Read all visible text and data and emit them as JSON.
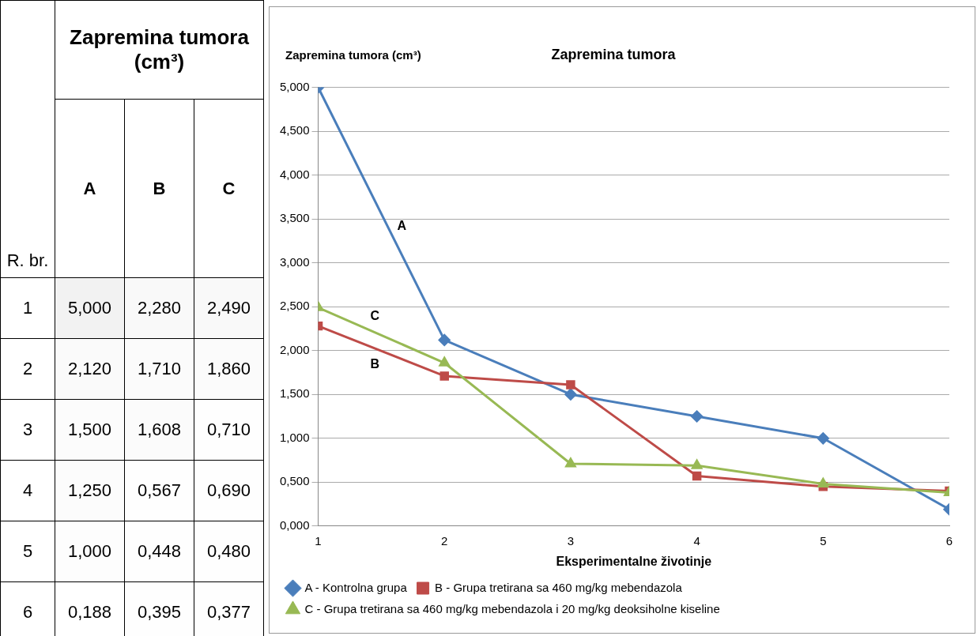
{
  "chart_data": [
    {
      "type": "heatmap",
      "title": "Zapremina tumora (cm³)",
      "ylabel": "R. br.",
      "categories": [
        "A",
        "B",
        "C"
      ],
      "y_categories": [
        "1",
        "2",
        "3",
        "4",
        "5",
        "6"
      ],
      "cells": [
        [
          5.0,
          2.28,
          2.49
        ],
        [
          2.12,
          1.71,
          1.86
        ],
        [
          1.5,
          1.608,
          0.71
        ],
        [
          1.25,
          0.567,
          0.69
        ],
        [
          1.0,
          0.448,
          0.48
        ],
        [
          0.188,
          0.395,
          0.377
        ]
      ],
      "cell_labels": [
        [
          "5,000",
          "2,280",
          "2,490"
        ],
        [
          "2,120",
          "1,710",
          "1,860"
        ],
        [
          "1,500",
          "1,608",
          "0,710"
        ],
        [
          "1,250",
          "0,567",
          "0,690"
        ],
        [
          "1,000",
          "0,448",
          "0,480"
        ],
        [
          "0,188",
          "0,395",
          "0,377"
        ]
      ]
    },
    {
      "type": "line",
      "title": "Zapremina tumora",
      "xlabel": "Eksperimentalne životinje",
      "ylabel": "Zapremina tumora (cm³)",
      "x": [
        1,
        2,
        3,
        4,
        5,
        6
      ],
      "xlim": [
        1,
        6
      ],
      "xticks": [
        1,
        2,
        3,
        4,
        5,
        6
      ],
      "ylim": [
        0,
        5
      ],
      "yticks": [
        {
          "value": 0,
          "label": "0,000"
        },
        {
          "value": 0.5,
          "label": "0,500"
        },
        {
          "value": 1,
          "label": "1,000"
        },
        {
          "value": 1.5,
          "label": "1,500"
        },
        {
          "value": 2,
          "label": "2,000"
        },
        {
          "value": 2.5,
          "label": "2,500"
        },
        {
          "value": 3,
          "label": "3,000"
        },
        {
          "value": 3.5,
          "label": "3,500"
        },
        {
          "value": 4,
          "label": "4,000"
        },
        {
          "value": 4.5,
          "label": "4,500"
        },
        {
          "value": 5,
          "label": "5,000"
        }
      ],
      "grid": "y",
      "legend": "bottom",
      "series": [
        {
          "name": "A - Kontrolna grupa",
          "color": "#4a7ebb",
          "marker": "diamond",
          "values": [
            5.0,
            2.12,
            1.5,
            1.25,
            1.0,
            0.19
          ]
        },
        {
          "name": "B - Grupa tretirana sa 460 mg/kg mebendazola",
          "color": "#be4b48",
          "marker": "square",
          "values": [
            2.28,
            1.71,
            1.61,
            0.57,
            0.45,
            0.4
          ]
        },
        {
          "name": "C - Grupa tretirana sa 460 mg/kg mebendazola i 20 mg/kg deoksiholne kiseline",
          "color": "#98b954",
          "marker": "triangle",
          "values": [
            2.49,
            1.86,
            0.71,
            0.69,
            0.48,
            0.38
          ]
        }
      ],
      "annotations": [
        "A",
        "B",
        "C"
      ]
    }
  ]
}
